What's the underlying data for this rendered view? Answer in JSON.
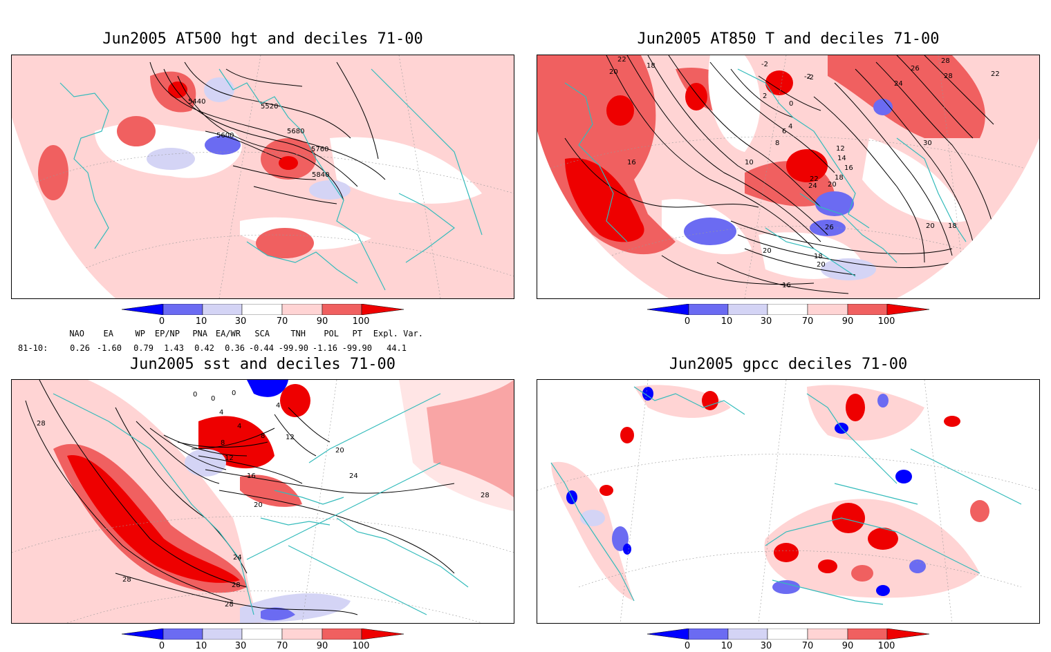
{
  "panels": [
    {
      "id": "p1",
      "title": "Jun2005 AT500 hgt and deciles 71-00",
      "contour_labels": [
        "5440",
        "5520",
        "5600",
        "5680",
        "5760",
        "5840"
      ]
    },
    {
      "id": "p2",
      "title": "Jun2005 AT850 T and deciles 71-00",
      "contour_labels": [
        "22",
        "20",
        "18",
        "-2",
        "-2",
        "-2",
        "0",
        "2",
        "4",
        "6",
        "8",
        "10",
        "12",
        "14",
        "16",
        "18",
        "20",
        "22",
        "24",
        "26",
        "28",
        "30",
        "28",
        "26",
        "24",
        "22",
        "20",
        "18",
        "16",
        "20",
        "20",
        "18",
        "16"
      ]
    },
    {
      "id": "p3",
      "title": "Jun2005 sst and deciles 71-00",
      "contour_labels": [
        "28",
        "0",
        "0",
        "0",
        "4",
        "4",
        "4",
        "8",
        "8",
        "12",
        "12",
        "16",
        "20",
        "20",
        "24",
        "24",
        "28",
        "28",
        "28",
        "28"
      ]
    },
    {
      "id": "p4",
      "title": "Jun2005 gpcc deciles 71-00",
      "contour_labels": []
    }
  ],
  "colorbar": {
    "ticks": [
      "0",
      "10",
      "30",
      "70",
      "90",
      "100"
    ],
    "colors": [
      "#0000ff",
      "#6b6bf2",
      "#d4d4f5",
      "#ffffff",
      "#ffd4d4",
      "#f06060",
      "#ee0000"
    ]
  },
  "teleconnections": {
    "headers": [
      "NAO",
      "EA",
      "WP",
      "EP/NP",
      "PNA",
      "EA/WR",
      "SCA",
      "TNH",
      "POL",
      "PT",
      "Expl. Var."
    ],
    "row_label": "81-10:",
    "values": [
      "0.26",
      "-1.60",
      "0.79",
      "1.43",
      "0.42",
      "0.36",
      "-0.44",
      "-99.90",
      "-1.16",
      "-99.90",
      "44.1"
    ]
  },
  "colors": {
    "coast": "#33bbbb",
    "light_red": "#ffd4d4",
    "mid_red": "#f06060",
    "dark_red": "#ee0000",
    "light_blue": "#d4d4f5",
    "mid_blue": "#6b6bf2",
    "dark_blue": "#0000ff"
  }
}
